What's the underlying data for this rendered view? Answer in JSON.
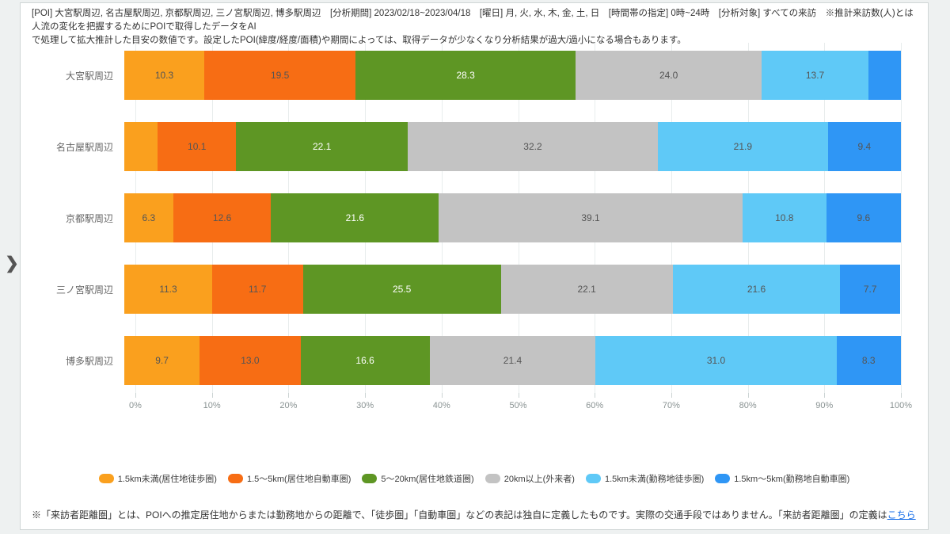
{
  "header": {
    "line1": "[POI] 大宮駅周辺, 名古屋駅周辺, 京都駅周辺, 三ノ宮駅周辺, 博多駅周辺　[分析期間] 2023/02/18~2023/04/18　[曜日] 月, 火, 水, 木, 金, 土, 日　[時間帯の指定] 0時~24時　[分析対象] すべての来訪　※推計来訪数(人)とは人流の変化を把握するためにPOIで取得したデータをAI",
    "line2": "で処理して拡大推計した目安の数値です。設定したPOI(緯度/経度/面積)や期間によっては、取得データが少なくなり分析結果が過大/過小になる場合もあります。"
  },
  "nav": {
    "expand_glyph": "❯"
  },
  "chart_data": {
    "type": "bar",
    "orientation": "horizontal",
    "stacked": true,
    "unit": "%",
    "xlim": [
      0,
      100
    ],
    "x_ticks": [
      "0%",
      "10%",
      "20%",
      "30%",
      "40%",
      "50%",
      "60%",
      "70%",
      "80%",
      "90%",
      "100%"
    ],
    "grid": true,
    "legend_position": "bottom",
    "label_min_value": 5,
    "categories": [
      "大宮駅周辺",
      "名古屋駅周辺",
      "京都駅周辺",
      "三ノ宮駅周辺",
      "博多駅周辺"
    ],
    "series": [
      {
        "name": "1.5km未満(居住地徒歩圏)",
        "color": "#FAA01E",
        "label_color": "#555555",
        "values": [
          10.3,
          4.3,
          6.3,
          11.3,
          9.7
        ]
      },
      {
        "name": "1.5～5km(居住地自動車圏)",
        "color": "#F76D14",
        "label_color": "#555555",
        "values": [
          19.5,
          10.1,
          12.6,
          11.7,
          13.0
        ]
      },
      {
        "name": "5～20km(居住地鉄道圏)",
        "color": "#5E9624",
        "label_color": "#FFFFFF",
        "values": [
          28.3,
          22.1,
          21.6,
          25.5,
          16.6
        ]
      },
      {
        "name": "20km以上(外来者)",
        "color": "#C3C3C3",
        "label_color": "#555555",
        "values": [
          24.0,
          32.2,
          39.1,
          22.1,
          21.4
        ]
      },
      {
        "name": "1.5km未満(勤務地徒歩圏)",
        "color": "#5FC9F7",
        "label_color": "#555555",
        "values": [
          13.7,
          21.9,
          10.8,
          21.6,
          31.0
        ]
      },
      {
        "name": "1.5km～5km(勤務地自動車圏)",
        "color": "#2F96F5",
        "label_color": "#555555",
        "values": [
          4.2,
          9.4,
          9.6,
          7.7,
          8.3
        ]
      }
    ]
  },
  "footer": {
    "text_before_link": "※「来訪者距離圏」とは、POIへの推定居住地からまたは勤務地からの距離で、「徒歩圏」「自動車圏」などの表記は独自に定義したものです。実際の交通手段ではありません。「来訪者距離圏」の定義は",
    "link_text": "こちら"
  }
}
